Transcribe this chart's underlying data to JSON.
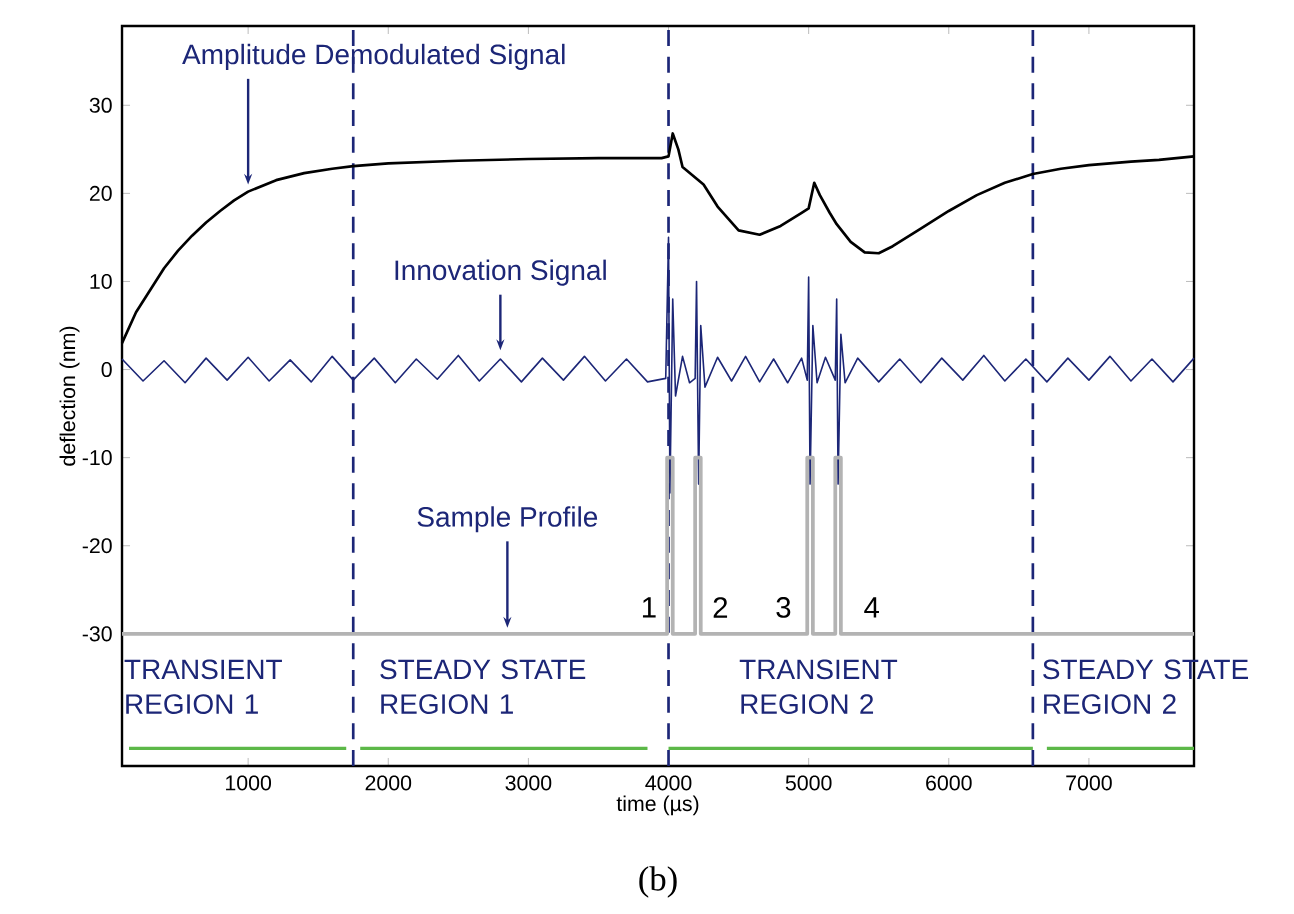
{
  "chart_data": {
    "type": "line",
    "xlabel": "time (µs)",
    "ylabel": "deflection (nm)",
    "xlim": [
      100,
      7750
    ],
    "ylim": [
      -45,
      39
    ],
    "xticks": [
      1000,
      2000,
      3000,
      4000,
      5000,
      6000,
      7000
    ],
    "yticks": [
      -30,
      -20,
      -10,
      0,
      10,
      20,
      30
    ],
    "series": [
      {
        "name": "Amplitude Demodulated Signal",
        "color": "#000000",
        "x": [
          100,
          200,
          300,
          400,
          500,
          600,
          700,
          800,
          900,
          1000,
          1200,
          1400,
          1600,
          1750,
          2000,
          2500,
          3000,
          3500,
          3950,
          4000,
          4030,
          4070,
          4100,
          4250,
          4350,
          4500,
          4650,
          4800,
          4950,
          5000,
          5040,
          5080,
          5150,
          5200,
          5300,
          5400,
          5500,
          5600,
          5800,
          6000,
          6200,
          6400,
          6600,
          6800,
          7000,
          7300,
          7500,
          7750
        ],
        "values": [
          3,
          6.5,
          9,
          11.5,
          13.5,
          15.2,
          16.7,
          18,
          19.2,
          20.2,
          21.5,
          22.3,
          22.8,
          23.1,
          23.4,
          23.7,
          23.9,
          24,
          24,
          24.2,
          26.8,
          25,
          23,
          21,
          18.5,
          15.8,
          15.3,
          16.3,
          17.8,
          18.3,
          21.2,
          19.8,
          17.8,
          16.5,
          14.5,
          13.3,
          13.2,
          14,
          16,
          18,
          19.8,
          21.2,
          22.2,
          22.8,
          23.2,
          23.6,
          23.8,
          24.2
        ]
      },
      {
        "name": "Innovation Signal",
        "color": "#1c2677",
        "x": [
          100,
          250,
          400,
          550,
          700,
          850,
          1000,
          1150,
          1300,
          1450,
          1600,
          1750,
          1900,
          2050,
          2200,
          2350,
          2500,
          2650,
          2800,
          2950,
          3100,
          3250,
          3400,
          3550,
          3700,
          3850,
          3980,
          4000,
          4010,
          4030,
          4050,
          4100,
          4150,
          4190,
          4200,
          4215,
          4230,
          4260,
          4350,
          4450,
          4550,
          4650,
          4750,
          4850,
          4950,
          4990,
          5000,
          5010,
          5030,
          5060,
          5120,
          5190,
          5200,
          5210,
          5230,
          5260,
          5350,
          5500,
          5650,
          5800,
          5950,
          6100,
          6250,
          6400,
          6550,
          6700,
          6850,
          7000,
          7150,
          7300,
          7450,
          7600,
          7750
        ],
        "values": [
          1.2,
          -1.3,
          1.0,
          -1.5,
          1.3,
          -1.2,
          1.4,
          -1.3,
          1.1,
          -1.4,
          1.5,
          -1.2,
          1.3,
          -1.5,
          1.2,
          -1.1,
          1.6,
          -1.3,
          1.2,
          -1.4,
          1.3,
          -1.2,
          1.5,
          -1.3,
          1.2,
          -1.4,
          -1,
          15,
          -14,
          8,
          -3,
          1.5,
          -1.5,
          -1,
          10,
          -13,
          5,
          -2,
          1.4,
          -1.3,
          1.5,
          -1.4,
          1.2,
          -1.5,
          1.3,
          -1.2,
          10.5,
          -13,
          5,
          -1.5,
          1.4,
          -1.2,
          8,
          -13,
          4,
          -1.5,
          1.3,
          -1.4,
          1.2,
          -1.5,
          1.3,
          -1.2,
          1.6,
          -1.3,
          1.2,
          -1.4,
          1.3,
          -1.2,
          1.5,
          -1.3,
          1.2,
          -1.4,
          1.3
        ]
      },
      {
        "name": "Sample Profile",
        "color": "#b3b3b3",
        "x": [
          100,
          3990,
          3990,
          4030,
          4030,
          4190,
          4190,
          4230,
          4230,
          4990,
          4990,
          5030,
          5030,
          5190,
          5190,
          5230,
          5230,
          7750
        ],
        "values": [
          -30,
          -30,
          -10,
          -10,
          -30,
          -30,
          -10,
          -10,
          -30,
          -30,
          -10,
          -10,
          -30,
          -30,
          -10,
          -10,
          -30,
          -30
        ]
      },
      {
        "color": "#5cb848",
        "x": [
          150,
          1700,
          1750,
          1800,
          3850,
          3925,
          4000,
          6600,
          6650,
          6700,
          7750
        ],
        "values": [
          -43,
          -43,
          null,
          -43,
          -43,
          null,
          -43,
          -43,
          null,
          -43,
          -43
        ]
      }
    ],
    "ref_lines": [
      {
        "axis": "x",
        "value": 1750,
        "color": "#1c2677",
        "line_style": "dashed"
      },
      {
        "axis": "x",
        "value": 4000,
        "color": "#1c2677",
        "line_style": "dashed"
      },
      {
        "axis": "x",
        "value": 6600,
        "color": "#1c2677",
        "line_style": "dashed"
      }
    ],
    "annotations": [
      "TRANSIENT REGION 1",
      "STEADY STATE REGION 1",
      "TRANSIENT REGION 2",
      "STEADY STATE REGION 2",
      "1",
      "2",
      "3",
      "4",
      "(b)"
    ]
  }
}
